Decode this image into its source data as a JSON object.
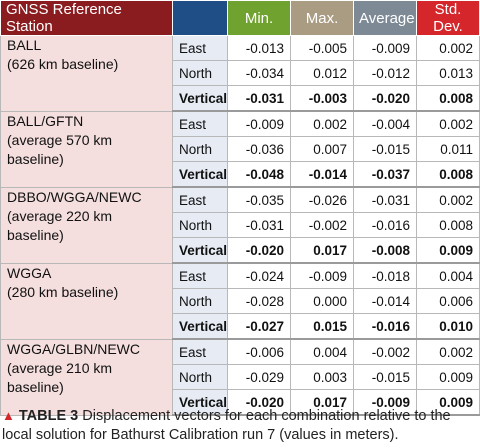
{
  "headers": {
    "station": "GNSS Reference Station",
    "direction": "",
    "min": "Min.",
    "max": "Max.",
    "average": "Average",
    "std": "Std. Dev."
  },
  "groups": [
    {
      "line1": "BALL",
      "line2": "(626 km baseline)",
      "rows": [
        {
          "dir": "East",
          "min": "-0.013",
          "max": "-0.005",
          "avg": "-0.009",
          "std": "0.002"
        },
        {
          "dir": "North",
          "min": "-0.034",
          "max": "0.012",
          "avg": "-0.012",
          "std": "0.013"
        },
        {
          "dir": "Vertical",
          "min": "-0.031",
          "max": "-0.003",
          "avg": "-0.020",
          "std": "0.008"
        }
      ]
    },
    {
      "line1": "BALL/GFTN",
      "line2": "(average 570 km baseline)",
      "rows": [
        {
          "dir": "East",
          "min": "-0.009",
          "max": "0.002",
          "avg": "-0.004",
          "std": "0.002"
        },
        {
          "dir": "North",
          "min": "-0.036",
          "max": "0.007",
          "avg": "-0.015",
          "std": "0.011"
        },
        {
          "dir": "Vertical",
          "min": "-0.048",
          "max": "-0.014",
          "avg": "-0.037",
          "std": "0.008"
        }
      ]
    },
    {
      "line1": "DBBO/WGGA/NEWC",
      "line2": "(average 220 km baseline)",
      "rows": [
        {
          "dir": "East",
          "min": "-0.035",
          "max": "-0.026",
          "avg": "-0.031",
          "std": "0.002"
        },
        {
          "dir": "North",
          "min": "-0.031",
          "max": "-0.002",
          "avg": "-0.016",
          "std": "0.008"
        },
        {
          "dir": "Vertical",
          "min": "-0.020",
          "max": "0.017",
          "avg": "-0.008",
          "std": "0.009"
        }
      ]
    },
    {
      "line1": "WGGA",
      "line2": "(280 km baseline)",
      "rows": [
        {
          "dir": "East",
          "min": "-0.024",
          "max": "-0.009",
          "avg": "-0.018",
          "std": "0.004"
        },
        {
          "dir": "North",
          "min": "-0.028",
          "max": "0.000",
          "avg": "-0.014",
          "std": "0.006"
        },
        {
          "dir": "Vertical",
          "min": "-0.027",
          "max": "0.015",
          "avg": "-0.016",
          "std": "0.010"
        }
      ]
    },
    {
      "line1": "WGGA/GLBN/NEWC",
      "line2": "(average 210 km baseline)",
      "rows": [
        {
          "dir": "East",
          "min": "-0.006",
          "max": "0.004",
          "avg": "-0.002",
          "std": "0.002"
        },
        {
          "dir": "North",
          "min": "-0.029",
          "max": "0.003",
          "avg": "-0.015",
          "std": "0.009"
        },
        {
          "dir": "Vertical",
          "min": "-0.020",
          "max": "0.017",
          "avg": "-0.009",
          "std": "0.009"
        }
      ]
    }
  ],
  "caption": {
    "marker": "▲",
    "label": "TABLE 3",
    "text": " Displacement vectors for each combination relative to the local solution for Bathurst Calibration run 7 (values in meters)."
  }
}
